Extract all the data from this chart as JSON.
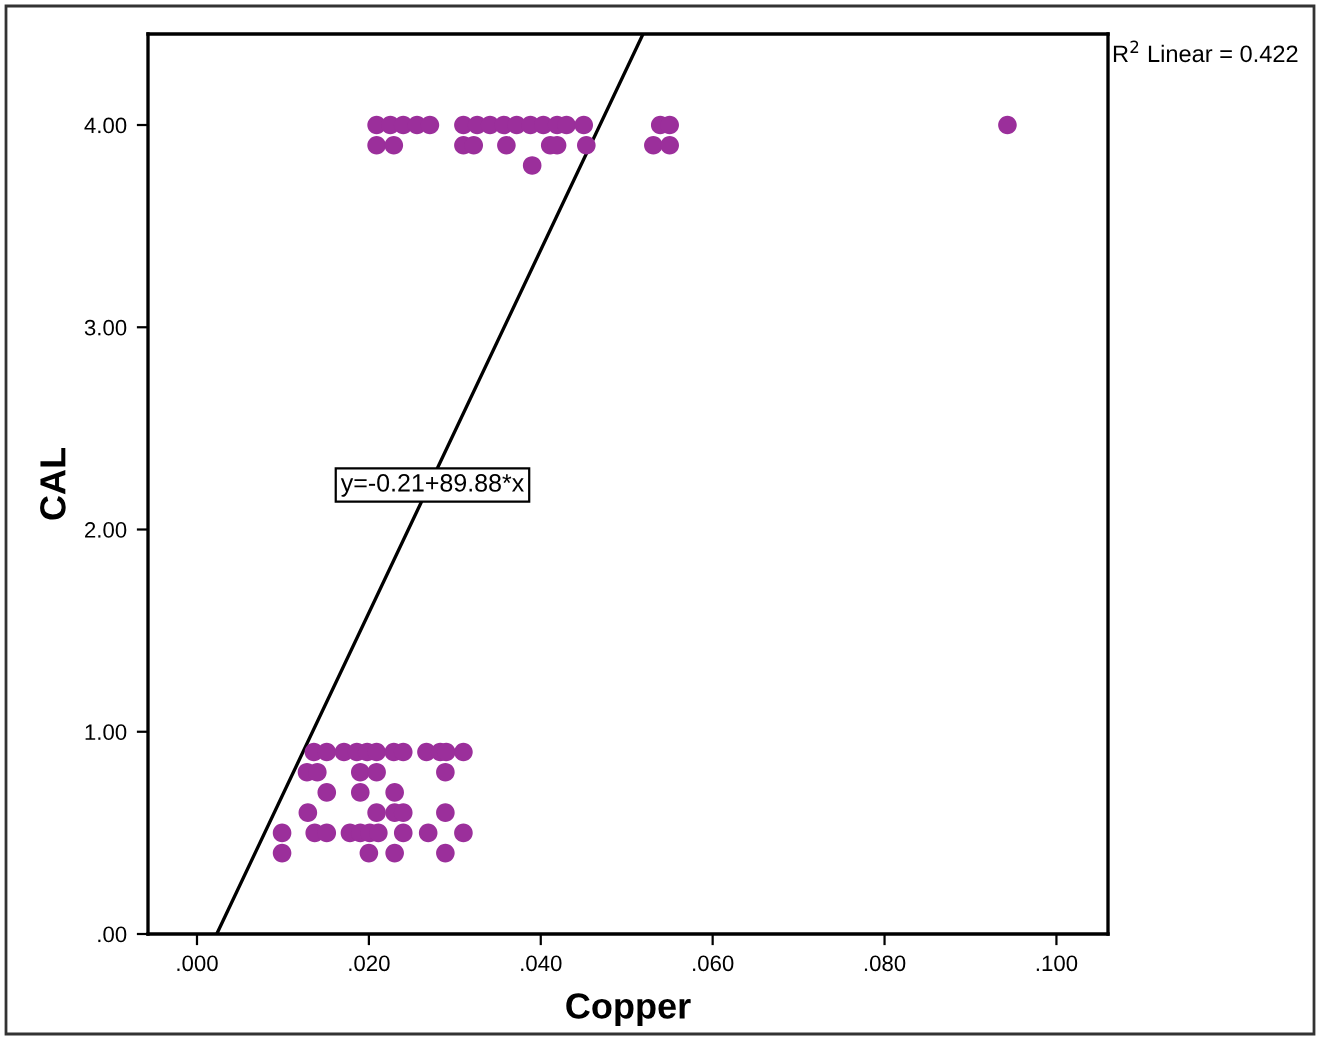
{
  "chart_data": {
    "type": "scatter",
    "xlabel": "Copper",
    "ylabel": "CAL",
    "xlim": [
      -0.0057,
      0.106
    ],
    "ylim": [
      0,
      4.45
    ],
    "xticks": [
      {
        "value": 0,
        "label": ".000"
      },
      {
        "value": 0.02,
        "label": ".020"
      },
      {
        "value": 0.04,
        "label": ".040"
      },
      {
        "value": 0.06,
        "label": ".060"
      },
      {
        "value": 0.08,
        "label": ".080"
      },
      {
        "value": 0.1,
        "label": ".100"
      }
    ],
    "yticks": [
      {
        "value": 0,
        "label": ".00"
      },
      {
        "value": 1,
        "label": "1.00"
      },
      {
        "value": 2,
        "label": "2.00"
      },
      {
        "value": 3,
        "label": "3.00"
      },
      {
        "value": 4,
        "label": "4.00"
      }
    ],
    "grid": false,
    "marker": "circle",
    "series": [
      {
        "color": "#9b2f9b",
        "x": [
          0.0136,
          0.0151,
          0.0171,
          0.0186,
          0.0198,
          0.0209,
          0.0229,
          0.024,
          0.0267,
          0.0283,
          0.029,
          0.031,
          0.0128,
          0.014,
          0.019,
          0.0209,
          0.0289,
          0.0151,
          0.019,
          0.023,
          0.0129,
          0.0209,
          0.023,
          0.024,
          0.0289,
          0.0099,
          0.0137,
          0.0151,
          0.0178,
          0.019,
          0.0201,
          0.0211,
          0.024,
          0.0269,
          0.031,
          0.0099,
          0.02,
          0.023,
          0.0289,
          0.0209,
          0.0225,
          0.024,
          0.0256,
          0.0271,
          0.031,
          0.0326,
          0.0341,
          0.0357,
          0.0372,
          0.0388,
          0.0403,
          0.0419,
          0.043,
          0.045,
          0.0539,
          0.055,
          0.0943,
          0.0209,
          0.0229,
          0.031,
          0.0322,
          0.036,
          0.0411,
          0.0419,
          0.0453,
          0.0531,
          0.055,
          0.039
        ],
        "values": [
          0.9,
          0.9,
          0.9,
          0.9,
          0.9,
          0.9,
          0.9,
          0.9,
          0.9,
          0.9,
          0.9,
          0.9,
          0.8,
          0.8,
          0.8,
          0.8,
          0.8,
          0.7,
          0.7,
          0.7,
          0.6,
          0.6,
          0.6,
          0.6,
          0.6,
          0.5,
          0.5,
          0.5,
          0.5,
          0.5,
          0.5,
          0.5,
          0.5,
          0.5,
          0.5,
          0.4,
          0.4,
          0.4,
          0.4,
          4.0,
          4.0,
          4.0,
          4.0,
          4.0,
          4.0,
          4.0,
          4.0,
          4.0,
          4.0,
          4.0,
          4.0,
          4.0,
          4.0,
          4.0,
          4.0,
          4.0,
          4.0,
          3.9,
          3.9,
          3.9,
          3.9,
          3.9,
          3.9,
          3.9,
          3.9,
          3.9,
          3.9,
          3.8
        ]
      },
      {
        "type": "line",
        "color": "#000000",
        "marker": "none",
        "line_style": "solid",
        "x": [
          0.0023,
          0.0519
        ],
        "values": [
          0.0,
          4.45
        ]
      }
    ],
    "annotations": [
      {
        "text": "y=-0.21+89.88*x",
        "x": 0.0274,
        "y": 2.22
      },
      "R$^{2}$ Linear = 0.422"
    ]
  }
}
